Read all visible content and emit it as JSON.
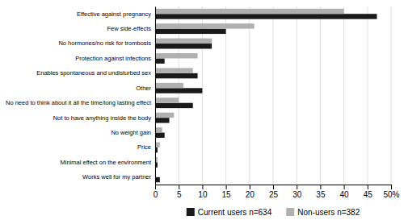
{
  "chart_data": {
    "type": "bar",
    "orientation": "horizontal",
    "categories": [
      "Effective against pregnancy",
      "Few side-effects",
      "No hormones/no risk for trombosis",
      "Protection against infections",
      "Enables spontaneous and undisturbed sex",
      "Other",
      "No need to think about it all the time/long lasting effect",
      "Not to have anything inside the body",
      "No weight gain",
      "Price",
      "Minimal effect on the environment",
      "Works well for my partner"
    ],
    "series": [
      {
        "name": "Current users n=634",
        "color": "#1a1a1a",
        "values": [
          47,
          15,
          12,
          2,
          9,
          10,
          8,
          3,
          2,
          0.5,
          0.5,
          1
        ]
      },
      {
        "name": "Non-users n=382",
        "color": "#b0b0b0",
        "values": [
          40,
          21,
          12,
          9,
          8,
          6,
          5,
          4,
          1.5,
          1,
          0.5,
          0
        ]
      }
    ],
    "xlim": [
      0,
      50
    ],
    "xticks": [
      0,
      5,
      10,
      15,
      20,
      25,
      30,
      35,
      40,
      45,
      {
        "value": 50,
        "label": "50%"
      }
    ],
    "grid": true,
    "legend": "bottom"
  }
}
